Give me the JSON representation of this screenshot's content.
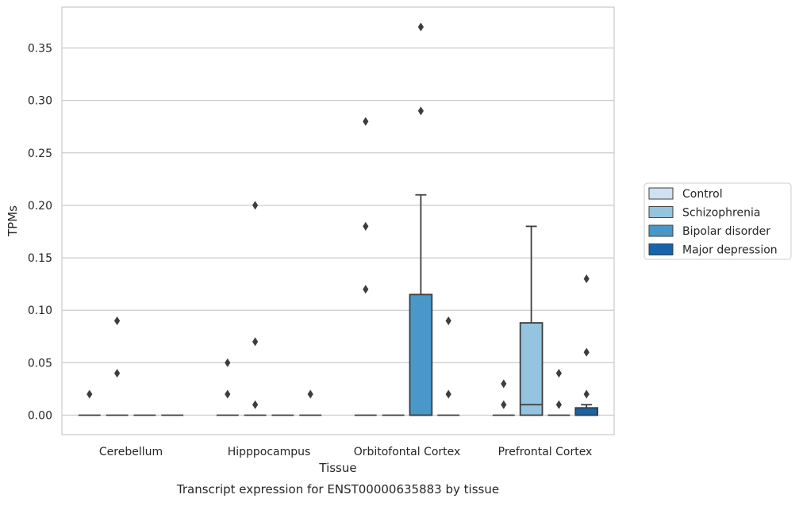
{
  "chart_data": {
    "type": "box",
    "title": "",
    "caption": "Transcript expression for ENST00000635883 by tissue",
    "xlabel": "Tissue",
    "ylabel": "TPMs",
    "ylim": [
      -0.018,
      0.388
    ],
    "yticks": [
      0.0,
      0.05,
      0.1,
      0.15,
      0.2,
      0.25,
      0.3,
      0.35
    ],
    "ytick_labels": [
      "0.00",
      "0.05",
      "0.10",
      "0.15",
      "0.20",
      "0.25",
      "0.30",
      "0.35"
    ],
    "grid": "horizontal",
    "legend_position": "right",
    "categories": [
      "Cerebellum",
      "Hipppocampus",
      "Orbitofontal Cortex",
      "Prefrontal Cortex"
    ],
    "series": [
      {
        "name": "Control",
        "color": "#d0e1f2",
        "boxes": [
          {
            "q1": 0.0,
            "median": 0.0,
            "q3": 0.0,
            "whislo": 0.0,
            "whishi": 0.0,
            "fliers": [
              0.02
            ]
          },
          {
            "q1": 0.0,
            "median": 0.0,
            "q3": 0.0,
            "whislo": 0.0,
            "whishi": 0.0,
            "fliers": [
              0.02,
              0.05
            ]
          },
          {
            "q1": 0.0,
            "median": 0.0,
            "q3": 0.0,
            "whislo": 0.0,
            "whishi": 0.0,
            "fliers": [
              0.12,
              0.18,
              0.28
            ]
          },
          {
            "q1": 0.0,
            "median": 0.0,
            "q3": 0.0,
            "whislo": 0.0,
            "whishi": 0.0,
            "fliers": [
              0.01,
              0.03
            ]
          }
        ]
      },
      {
        "name": "Schizophrenia",
        "color": "#94c4df",
        "boxes": [
          {
            "q1": 0.0,
            "median": 0.0,
            "q3": 0.0,
            "whislo": 0.0,
            "whishi": 0.0,
            "fliers": [
              0.04,
              0.09
            ]
          },
          {
            "q1": 0.0,
            "median": 0.0,
            "q3": 0.0,
            "whislo": 0.0,
            "whishi": 0.0,
            "fliers": [
              0.01,
              0.07,
              0.2
            ]
          },
          {
            "q1": 0.0,
            "median": 0.0,
            "q3": 0.0,
            "whislo": 0.0,
            "whishi": 0.0,
            "fliers": []
          },
          {
            "q1": 0.0,
            "median": 0.01,
            "q3": 0.088,
            "whislo": 0.0,
            "whishi": 0.18,
            "fliers": []
          }
        ]
      },
      {
        "name": "Bipolar disorder",
        "color": "#4a98c9",
        "boxes": [
          {
            "q1": 0.0,
            "median": 0.0,
            "q3": 0.0,
            "whislo": 0.0,
            "whishi": 0.0,
            "fliers": []
          },
          {
            "q1": 0.0,
            "median": 0.0,
            "q3": 0.0,
            "whislo": 0.0,
            "whishi": 0.0,
            "fliers": []
          },
          {
            "q1": 0.0,
            "median": 0.0,
            "q3": 0.115,
            "whislo": 0.0,
            "whishi": 0.21,
            "fliers": [
              0.29,
              0.37
            ]
          },
          {
            "q1": 0.0,
            "median": 0.0,
            "q3": 0.0,
            "whislo": 0.0,
            "whishi": 0.0,
            "fliers": [
              0.01,
              0.04
            ]
          }
        ]
      },
      {
        "name": "Major depression",
        "color": "#1764ab",
        "boxes": [
          {
            "q1": 0.0,
            "median": 0.0,
            "q3": 0.0,
            "whislo": 0.0,
            "whishi": 0.0,
            "fliers": []
          },
          {
            "q1": 0.0,
            "median": 0.0,
            "q3": 0.0,
            "whislo": 0.0,
            "whishi": 0.0,
            "fliers": [
              0.02
            ]
          },
          {
            "q1": 0.0,
            "median": 0.0,
            "q3": 0.0,
            "whislo": 0.0,
            "whishi": 0.0,
            "fliers": [
              0.02,
              0.09
            ]
          },
          {
            "q1": 0.0,
            "median": 0.0,
            "q3": 0.007,
            "whislo": 0.0,
            "whishi": 0.01,
            "fliers": [
              0.02,
              0.06,
              0.13
            ]
          }
        ]
      }
    ]
  }
}
